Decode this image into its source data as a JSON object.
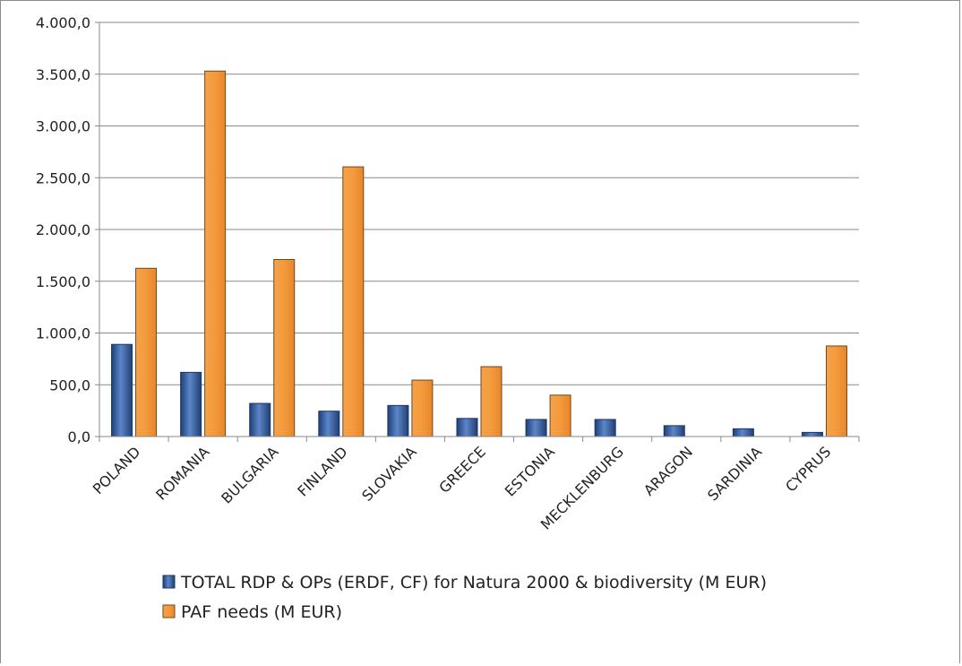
{
  "chart_data": {
    "type": "bar",
    "categories": [
      "POLAND",
      "ROMANIA",
      "BULGARIA",
      "FINLAND",
      "SLOVAKIA",
      "GREECE",
      "ESTONIA",
      "MECKLENBURG",
      "ARAGON",
      "SARDINIA",
      "CYPRUS"
    ],
    "series": [
      {
        "name": "TOTAL RDP & OPs (ERDF, CF) for Natura 2000 & biodiversity (M EUR)",
        "color": "#3f6bb0",
        "values": [
          890,
          620,
          320,
          245,
          300,
          175,
          165,
          165,
          105,
          75,
          40
        ]
      },
      {
        "name": "PAF needs (M EUR)",
        "color": "#f39a3c",
        "values": [
          1625,
          3530,
          1710,
          2605,
          545,
          675,
          400,
          0,
          0,
          0,
          875
        ]
      }
    ],
    "ylim": [
      0,
      4000
    ],
    "yticks": [
      "0,0",
      "500,0",
      "1.000,0",
      "1.500,0",
      "2.000,0",
      "2.500,0",
      "3.000,0",
      "3.500,0",
      "4.000,0"
    ],
    "ytick_values": [
      0,
      500,
      1000,
      1500,
      2000,
      2500,
      3000,
      3500,
      4000
    ],
    "grid": true,
    "legend_position": "bottom",
    "title": "",
    "xlabel": "",
    "ylabel": ""
  }
}
